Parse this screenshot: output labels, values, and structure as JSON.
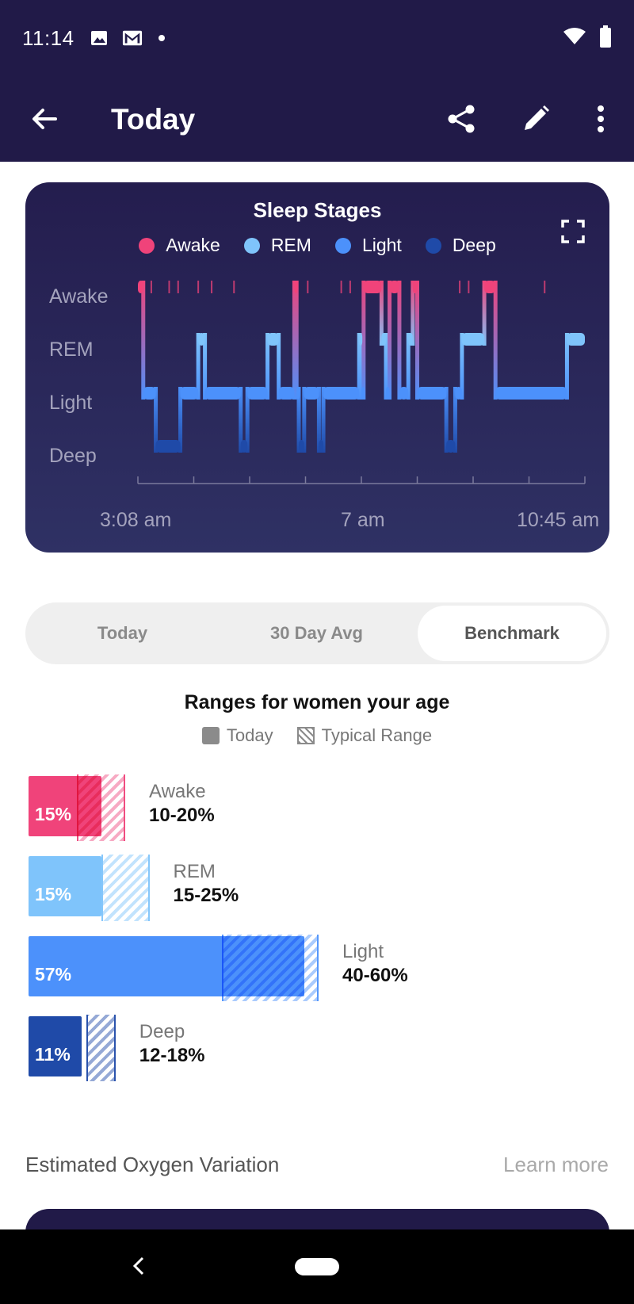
{
  "status_bar": {
    "time": "11:14",
    "icons": [
      "image-icon",
      "gmail-icon",
      "notification-dot",
      "wifi-icon",
      "battery-icon"
    ]
  },
  "app_bar": {
    "title": "Today",
    "actions": [
      "share-icon",
      "edit-icon",
      "more-vert-icon"
    ]
  },
  "sleep_card": {
    "title": "Sleep Stages",
    "legend": [
      {
        "label": "Awake",
        "color": "#f0437a"
      },
      {
        "label": "REM",
        "color": "#7fc4fb"
      },
      {
        "label": "Light",
        "color": "#4c91fb"
      },
      {
        "label": "Deep",
        "color": "#1f4aa8"
      }
    ],
    "stages": [
      "Awake",
      "REM",
      "Light",
      "Deep"
    ],
    "time_labels": [
      "3:08 am",
      "7 am",
      "10:45 am"
    ]
  },
  "chart_data": {
    "type": "area",
    "title": "Sleep Stages",
    "x_start": "3:08 am",
    "x_end": "10:45 am",
    "x_ticks": [
      "3:08 am",
      "7 am",
      "10:45 am"
    ],
    "y_categories": [
      "Awake",
      "REM",
      "Light",
      "Deep"
    ],
    "segments": [
      {
        "stage": "Awake",
        "start": 0.0,
        "end": 0.012
      },
      {
        "stage": "Light",
        "start": 0.012,
        "end": 0.04
      },
      {
        "stage": "Deep",
        "start": 0.04,
        "end": 0.095
      },
      {
        "stage": "Light",
        "start": 0.095,
        "end": 0.135
      },
      {
        "stage": "REM",
        "start": 0.135,
        "end": 0.15
      },
      {
        "stage": "Light",
        "start": 0.15,
        "end": 0.23
      },
      {
        "stage": "Deep",
        "start": 0.23,
        "end": 0.245
      },
      {
        "stage": "Light",
        "start": 0.245,
        "end": 0.29
      },
      {
        "stage": "REM",
        "start": 0.29,
        "end": 0.315
      },
      {
        "stage": "Light",
        "start": 0.315,
        "end": 0.35
      },
      {
        "stage": "Awake",
        "start": 0.35,
        "end": 0.355
      },
      {
        "stage": "Light",
        "start": 0.355,
        "end": 0.36
      },
      {
        "stage": "Deep",
        "start": 0.36,
        "end": 0.372
      },
      {
        "stage": "Light",
        "start": 0.372,
        "end": 0.405
      },
      {
        "stage": "Deep",
        "start": 0.405,
        "end": 0.415
      },
      {
        "stage": "Light",
        "start": 0.415,
        "end": 0.495
      },
      {
        "stage": "REM",
        "start": 0.495,
        "end": 0.5
      },
      {
        "stage": "Light",
        "start": 0.5,
        "end": 0.505
      },
      {
        "stage": "Awake",
        "start": 0.505,
        "end": 0.545
      },
      {
        "stage": "REM",
        "start": 0.545,
        "end": 0.555
      },
      {
        "stage": "Light",
        "start": 0.555,
        "end": 0.563
      },
      {
        "stage": "Awake",
        "start": 0.563,
        "end": 0.585
      },
      {
        "stage": "Light",
        "start": 0.585,
        "end": 0.605
      },
      {
        "stage": "REM",
        "start": 0.605,
        "end": 0.615
      },
      {
        "stage": "Awake",
        "start": 0.615,
        "end": 0.625
      },
      {
        "stage": "Light",
        "start": 0.625,
        "end": 0.69
      },
      {
        "stage": "Deep",
        "start": 0.69,
        "end": 0.71
      },
      {
        "stage": "Light",
        "start": 0.71,
        "end": 0.725
      },
      {
        "stage": "REM",
        "start": 0.725,
        "end": 0.775
      },
      {
        "stage": "Awake",
        "start": 0.775,
        "end": 0.8
      },
      {
        "stage": "Light",
        "start": 0.8,
        "end": 0.96
      },
      {
        "stage": "REM",
        "start": 0.96,
        "end": 1.0
      }
    ],
    "awake_blips": [
      0.03,
      0.07,
      0.09,
      0.135,
      0.165,
      0.215,
      0.38,
      0.455,
      0.475,
      0.72,
      0.74,
      0.91
    ]
  },
  "tabs": [
    {
      "label": "Today",
      "active": false
    },
    {
      "label": "30 Day Avg",
      "active": false
    },
    {
      "label": "Benchmark",
      "active": true
    }
  ],
  "benchmark": {
    "title": "Ranges for women your age",
    "legend_today": "Today",
    "legend_typical": "Typical Range",
    "rows": [
      {
        "stage": "Awake",
        "today_pct": 15,
        "today_label": "15%",
        "range_low": 10,
        "range_high": 20,
        "range_label": "10-20%",
        "color": "#f0437a",
        "hatch_color": "#f7a6c0"
      },
      {
        "stage": "REM",
        "today_pct": 15,
        "today_label": "15%",
        "range_low": 15,
        "range_high": 25,
        "range_label": "15-25%",
        "color": "#7fc4fb",
        "hatch_color": "#bfe2fd"
      },
      {
        "stage": "Light",
        "today_pct": 57,
        "today_label": "57%",
        "range_low": 40,
        "range_high": 60,
        "range_label": "40-60%",
        "color": "#4c91fb",
        "hatch_color": "#a6c8fd"
      },
      {
        "stage": "Deep",
        "today_pct": 11,
        "today_label": "11%",
        "range_low": 12,
        "range_high": 18,
        "range_label": "12-18%",
        "color": "#1f4aa8",
        "hatch_color": "#8fa4d4"
      }
    ]
  },
  "oxygen": {
    "label": "Estimated Oxygen Variation",
    "link": "Learn more"
  }
}
